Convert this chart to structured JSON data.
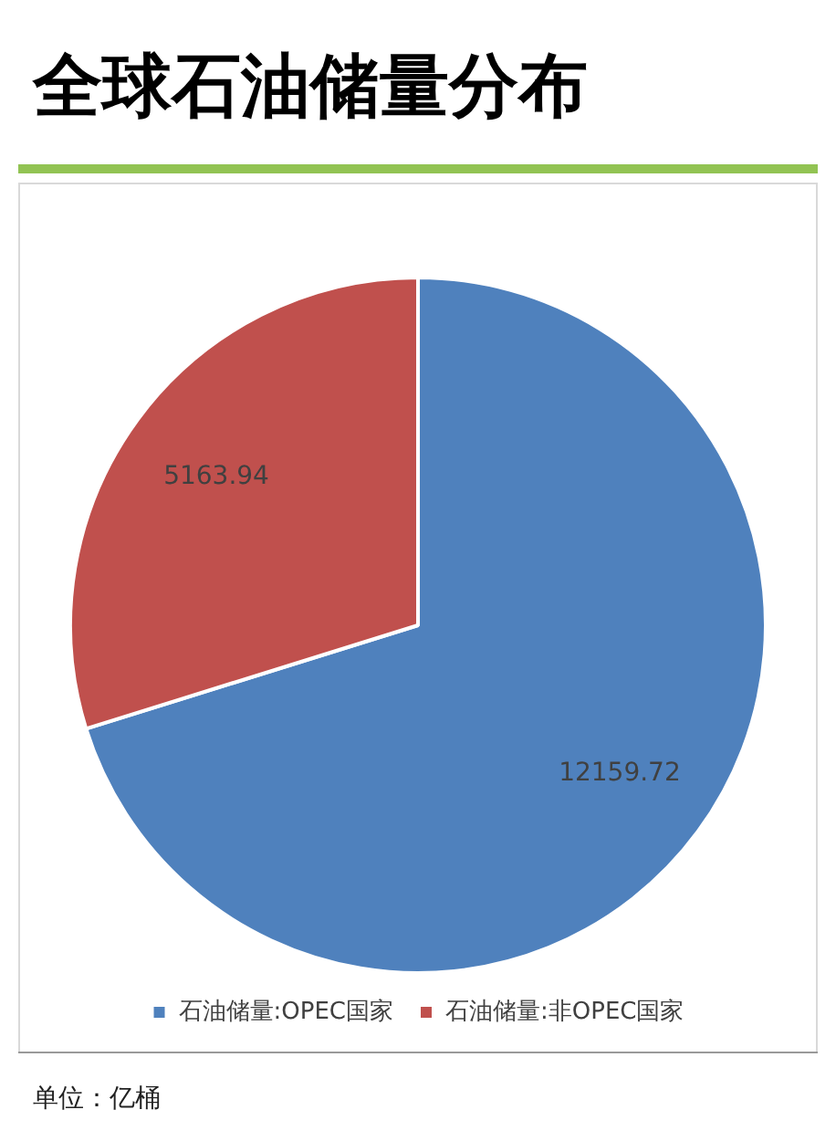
{
  "chart_data": {
    "type": "pie",
    "title": "全球石油储量分布",
    "categories": [
      "石油储量:OPEC国家",
      "石油储量:非OPEC国家"
    ],
    "values": [
      12159.72,
      5163.94
    ],
    "colors": [
      "#4f81bd",
      "#c0504d"
    ],
    "data_labels": true,
    "legend": "bottom",
    "annotations": [
      "单位：亿桶"
    ]
  }
}
